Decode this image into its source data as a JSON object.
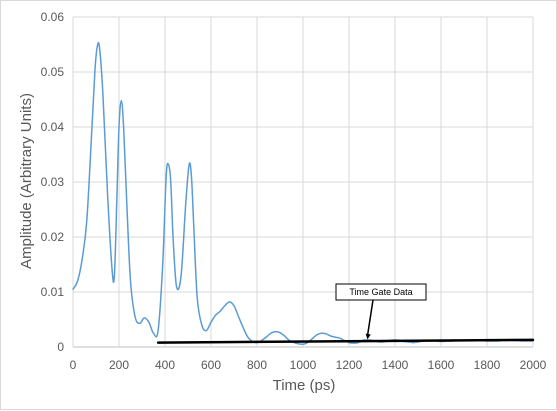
{
  "chart_data": {
    "type": "line",
    "xlabel": "Time (ps)",
    "ylabel": "Amplitude (Arbitrary Units)",
    "xlim": [
      0,
      2000
    ],
    "ylim": [
      0,
      0.06
    ],
    "x_ticks": [
      "0",
      "200",
      "400",
      "600",
      "800",
      "1000",
      "1200",
      "1400",
      "1600",
      "1800",
      "2000"
    ],
    "y_ticks": [
      "0",
      "0.01",
      "0.02",
      "0.03",
      "0.04",
      "0.05",
      "0.06"
    ],
    "grid": true,
    "series": [
      {
        "color": "#5b9bd5",
        "x": [
          0,
          20,
          40,
          60,
          80,
          95,
          105,
          115,
          130,
          150,
          170,
          180,
          190,
          200,
          210,
          220,
          235,
          250,
          270,
          290,
          310,
          330,
          350,
          370,
          390,
          405,
          415,
          425,
          435,
          450,
          470,
          490,
          505,
          515,
          525,
          540,
          560,
          580,
          600,
          620,
          640,
          660,
          680,
          700,
          720,
          740,
          760,
          780,
          800,
          820,
          840,
          860,
          880,
          900,
          920,
          940,
          960,
          980,
          1000,
          1020,
          1040,
          1060,
          1080,
          1100,
          1120,
          1140,
          1160,
          1180,
          1200,
          1220,
          1240,
          1260,
          1280,
          1300,
          1320,
          1340,
          1360,
          1380,
          1400,
          1420,
          1440,
          1460,
          1480,
          1500,
          1520,
          1540,
          1560,
          1580,
          1600,
          1650,
          1700,
          1750,
          1800,
          1850,
          1900,
          1950,
          2000
        ],
        "y": [
          0.0105,
          0.012,
          0.016,
          0.023,
          0.038,
          0.05,
          0.0545,
          0.0545,
          0.046,
          0.028,
          0.014,
          0.013,
          0.026,
          0.04,
          0.0448,
          0.04,
          0.025,
          0.012,
          0.0055,
          0.0043,
          0.0053,
          0.0045,
          0.0025,
          0.003,
          0.015,
          0.031,
          0.0332,
          0.03,
          0.02,
          0.011,
          0.013,
          0.026,
          0.0332,
          0.031,
          0.022,
          0.009,
          0.004,
          0.003,
          0.0045,
          0.0058,
          0.0065,
          0.0075,
          0.0082,
          0.0075,
          0.0055,
          0.0035,
          0.0018,
          0.001,
          0.0008,
          0.0012,
          0.0018,
          0.0025,
          0.0028,
          0.0026,
          0.002,
          0.0012,
          0.0008,
          0.0006,
          0.0005,
          0.0008,
          0.0015,
          0.0022,
          0.0025,
          0.0024,
          0.002,
          0.0018,
          0.0016,
          0.0012,
          0.0008,
          0.0007,
          0.0008,
          0.0012,
          0.0013,
          0.0012,
          0.001,
          0.0009,
          0.001,
          0.0012,
          0.0013,
          0.0012,
          0.001,
          0.0009,
          0.0008,
          0.0009,
          0.0011,
          0.0012,
          0.0012,
          0.0011,
          0.001,
          0.0011,
          0.0012,
          0.0012,
          0.0011,
          0.0011,
          0.0012,
          0.0011,
          0.0011
        ]
      },
      {
        "color": "#000000",
        "x": [
          370,
          2000
        ],
        "y": [
          0.0008,
          0.0013
        ]
      }
    ],
    "annotations": [
      {
        "text": "Time Gate Data",
        "x": 1280,
        "y": 0.0012
      }
    ]
  }
}
